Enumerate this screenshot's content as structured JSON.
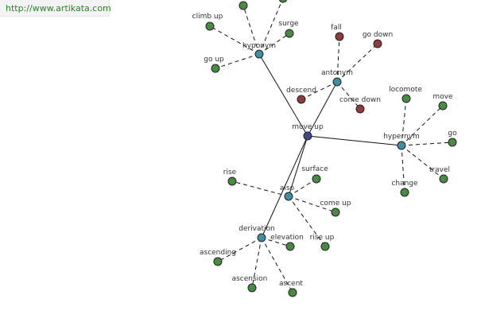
{
  "header": {
    "url_text": "http://www.artikata.com"
  },
  "colors": {
    "center": "#3a4a8a",
    "relation": "#3f8f9f",
    "related": "#4a8a42",
    "antonym_word": "#8e3b3b"
  },
  "graph": {
    "center": {
      "id": "move_up",
      "label": "move up"
    },
    "nodes": [
      {
        "id": "hyponym",
        "label": "hyponym",
        "kind": "relation"
      },
      {
        "id": "antonym",
        "label": "antonym",
        "kind": "relation"
      },
      {
        "id": "hypernym",
        "label": "hypernym",
        "kind": "relation"
      },
      {
        "id": "also",
        "label": "also",
        "kind": "relation"
      },
      {
        "id": "derivation",
        "label": "derivation",
        "kind": "relation"
      },
      {
        "id": "climb_up",
        "label": "climb up",
        "kind": "related"
      },
      {
        "id": "surge",
        "label": "surge",
        "kind": "related"
      },
      {
        "id": "go_up",
        "label": "go up",
        "kind": "related"
      },
      {
        "id": "hypo_extra_1",
        "label": "",
        "kind": "related"
      },
      {
        "id": "hypo_extra_2",
        "label": "",
        "kind": "related"
      },
      {
        "id": "fall",
        "label": "fall",
        "kind": "antonym_word"
      },
      {
        "id": "go_down",
        "label": "go down",
        "kind": "antonym_word"
      },
      {
        "id": "descend",
        "label": "descend",
        "kind": "antonym_word"
      },
      {
        "id": "come_down",
        "label": "come down",
        "kind": "antonym_word"
      },
      {
        "id": "locomote",
        "label": "locomote",
        "kind": "related"
      },
      {
        "id": "move",
        "label": "move",
        "kind": "related"
      },
      {
        "id": "go",
        "label": "go",
        "kind": "related"
      },
      {
        "id": "travel",
        "label": "travel",
        "kind": "related"
      },
      {
        "id": "change",
        "label": "change",
        "kind": "related"
      },
      {
        "id": "rise",
        "label": "rise",
        "kind": "related"
      },
      {
        "id": "surface",
        "label": "surface",
        "kind": "related"
      },
      {
        "id": "come_up",
        "label": "come up",
        "kind": "related"
      },
      {
        "id": "rise_up",
        "label": "rise up",
        "kind": "related"
      },
      {
        "id": "elevation",
        "label": "elevation",
        "kind": "related"
      },
      {
        "id": "ascending",
        "label": "ascending",
        "kind": "related"
      },
      {
        "id": "ascension",
        "label": "ascension",
        "kind": "related"
      },
      {
        "id": "ascent",
        "label": "ascent",
        "kind": "related"
      }
    ],
    "edges": [
      {
        "from": "move_up",
        "to": "hyponym",
        "style": "solid"
      },
      {
        "from": "move_up",
        "to": "antonym",
        "style": "solid"
      },
      {
        "from": "move_up",
        "to": "hypernym",
        "style": "solid"
      },
      {
        "from": "move_up",
        "to": "also",
        "style": "solid"
      },
      {
        "from": "move_up",
        "to": "derivation",
        "style": "solid"
      },
      {
        "from": "hyponym",
        "to": "climb_up",
        "style": "dashed"
      },
      {
        "from": "hyponym",
        "to": "surge",
        "style": "dashed"
      },
      {
        "from": "hyponym",
        "to": "go_up",
        "style": "dashed"
      },
      {
        "from": "hyponym",
        "to": "hypo_extra_1",
        "style": "dashed"
      },
      {
        "from": "hyponym",
        "to": "hypo_extra_2",
        "style": "dashed"
      },
      {
        "from": "antonym",
        "to": "fall",
        "style": "dashed"
      },
      {
        "from": "antonym",
        "to": "go_down",
        "style": "dashed"
      },
      {
        "from": "antonym",
        "to": "descend",
        "style": "dashed"
      },
      {
        "from": "antonym",
        "to": "come_down",
        "style": "dashed"
      },
      {
        "from": "hypernym",
        "to": "locomote",
        "style": "dashed"
      },
      {
        "from": "hypernym",
        "to": "move",
        "style": "dashed"
      },
      {
        "from": "hypernym",
        "to": "go",
        "style": "dashed"
      },
      {
        "from": "hypernym",
        "to": "travel",
        "style": "dashed"
      },
      {
        "from": "hypernym",
        "to": "change",
        "style": "dashed"
      },
      {
        "from": "also",
        "to": "rise",
        "style": "dashed"
      },
      {
        "from": "also",
        "to": "surface",
        "style": "dashed"
      },
      {
        "from": "also",
        "to": "come_up",
        "style": "dashed"
      },
      {
        "from": "also",
        "to": "rise_up",
        "style": "dashed"
      },
      {
        "from": "derivation",
        "to": "elevation",
        "style": "dashed"
      },
      {
        "from": "derivation",
        "to": "ascending",
        "style": "dashed"
      },
      {
        "from": "derivation",
        "to": "ascension",
        "style": "dashed"
      },
      {
        "from": "derivation",
        "to": "ascent",
        "style": "dashed"
      }
    ]
  }
}
